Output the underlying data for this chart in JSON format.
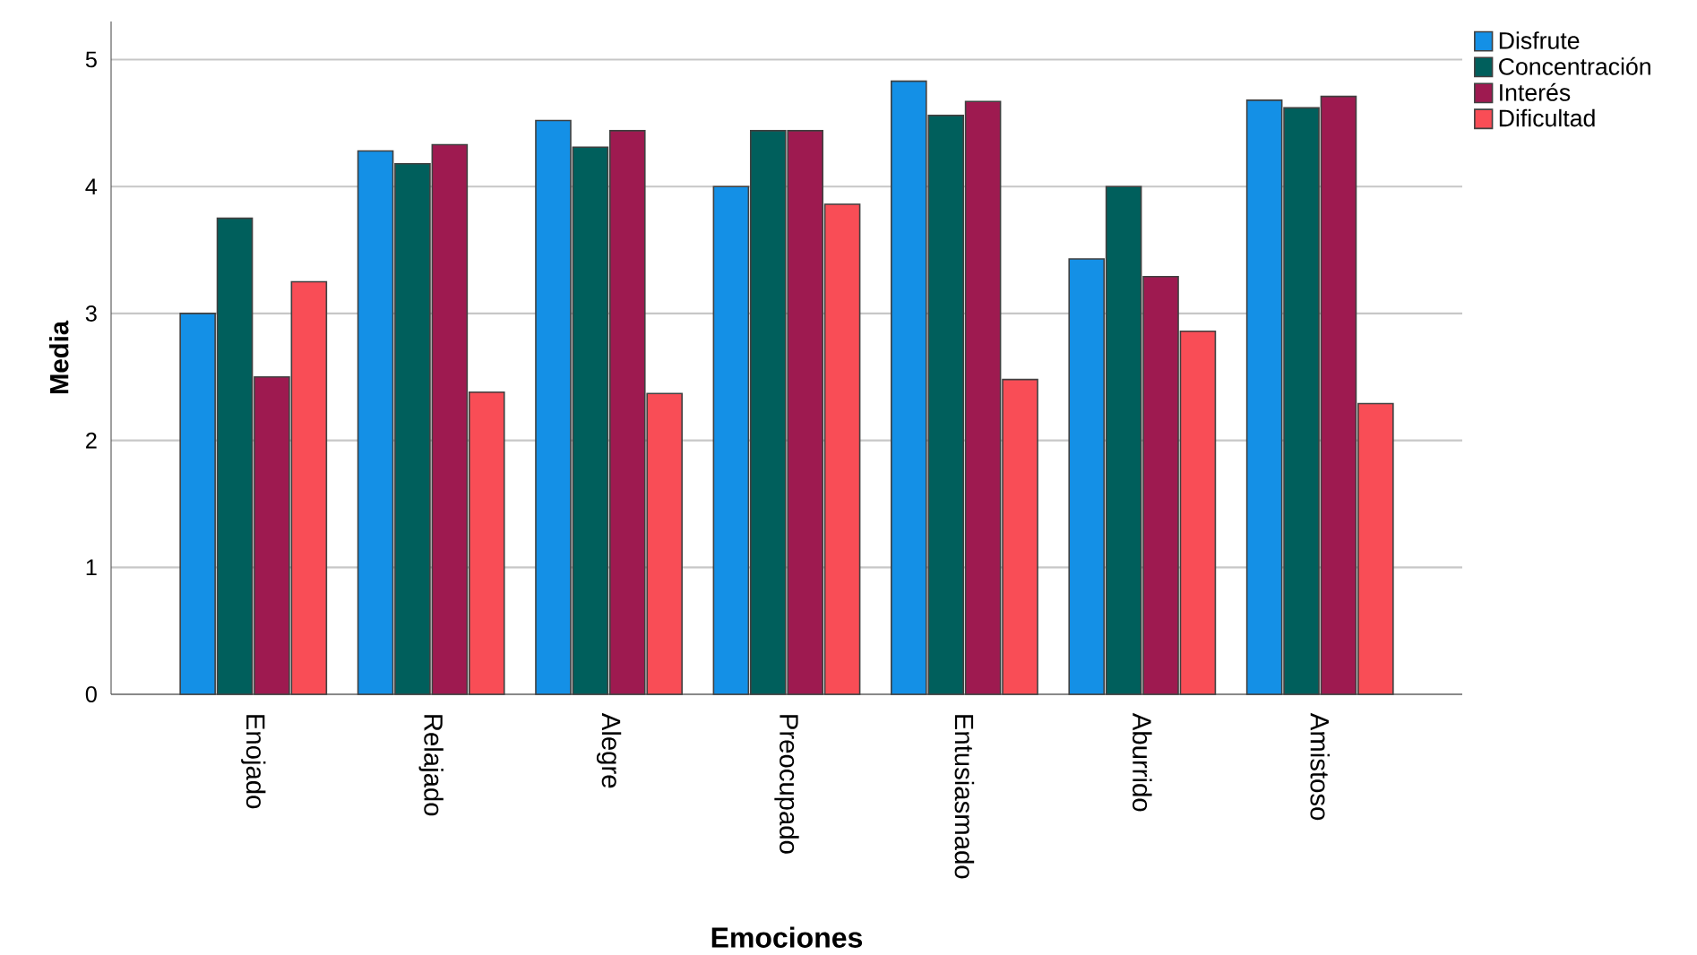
{
  "chart_data": {
    "type": "bar",
    "xlabel": "Emociones",
    "ylabel": "Media",
    "categories": [
      "Enojado",
      "Relajado",
      "Alegre",
      "Preocupado",
      "Entusiasmado",
      "Aburrido",
      "Amistoso"
    ],
    "series": [
      {
        "name": "Disfrute",
        "color": "#1490e6",
        "values": [
          3.0,
          4.28,
          4.52,
          4.0,
          4.83,
          3.43,
          4.68
        ]
      },
      {
        "name": "Concentración",
        "color": "#005f5c",
        "values": [
          3.75,
          4.18,
          4.31,
          4.44,
          4.56,
          4.0,
          4.62
        ]
      },
      {
        "name": "Interés",
        "color": "#9e1a50",
        "values": [
          2.5,
          4.33,
          4.44,
          4.44,
          4.67,
          3.29,
          4.71
        ]
      },
      {
        "name": "Dificultad",
        "color": "#f94d56",
        "values": [
          3.25,
          2.38,
          2.37,
          3.86,
          2.48,
          2.86,
          2.29
        ]
      }
    ],
    "ylim": [
      0,
      5.3
    ],
    "yticks": [
      0,
      1,
      2,
      3,
      4,
      5
    ],
    "grid": "y",
    "legend": "top right"
  }
}
